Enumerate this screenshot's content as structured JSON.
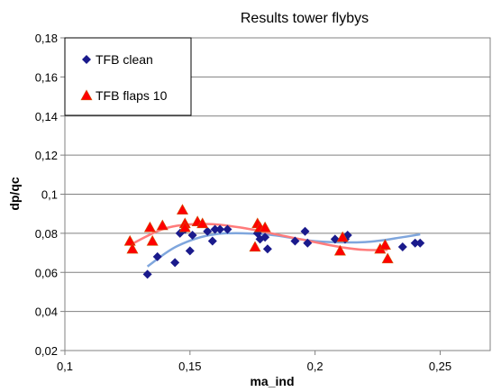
{
  "chart_data": {
    "type": "scatter",
    "title": "Results tower flybys",
    "xlabel": "ma_ind",
    "ylabel": "dp/qc",
    "xlim": [
      0.1,
      0.27
    ],
    "ylim": [
      0.02,
      0.18
    ],
    "x_ticks": [
      0.1,
      0.15,
      0.2,
      0.25
    ],
    "y_ticks": [
      0.02,
      0.04,
      0.06,
      0.08,
      0.1,
      0.12,
      0.14,
      0.16,
      0.18
    ],
    "x_tick_labels": [
      "0,1",
      "0,15",
      "0,2",
      "0,25"
    ],
    "y_tick_labels": [
      "0,02",
      "0,04",
      "0,06",
      "0,08",
      "0,1",
      "0,12",
      "0,14",
      "0,16",
      "0,18"
    ],
    "grid": "horizontal",
    "legend_position": "top-left",
    "series": [
      {
        "name": "TFB clean",
        "marker": "diamond",
        "color": "#1a1a8c",
        "x": [
          0.133,
          0.137,
          0.144,
          0.146,
          0.148,
          0.15,
          0.151,
          0.157,
          0.159,
          0.16,
          0.162,
          0.165,
          0.177,
          0.178,
          0.18,
          0.181,
          0.192,
          0.196,
          0.197,
          0.208,
          0.212,
          0.213,
          0.235,
          0.24,
          0.242
        ],
        "y": [
          0.059,
          0.068,
          0.065,
          0.08,
          0.082,
          0.071,
          0.079,
          0.081,
          0.076,
          0.082,
          0.082,
          0.082,
          0.08,
          0.077,
          0.078,
          0.072,
          0.076,
          0.081,
          0.075,
          0.077,
          0.077,
          0.079,
          0.073,
          0.075,
          0.075
        ]
      },
      {
        "name": "TFB flaps 10",
        "marker": "triangle",
        "color": "#ff0000",
        "x": [
          0.126,
          0.127,
          0.134,
          0.135,
          0.139,
          0.147,
          0.148,
          0.148,
          0.153,
          0.155,
          0.176,
          0.177,
          0.178,
          0.18,
          0.21,
          0.211,
          0.226,
          0.228,
          0.229
        ],
        "y": [
          0.076,
          0.072,
          0.083,
          0.076,
          0.084,
          0.092,
          0.085,
          0.083,
          0.086,
          0.085,
          0.073,
          0.085,
          0.083,
          0.083,
          0.071,
          0.078,
          0.072,
          0.074,
          0.067
        ]
      }
    ],
    "trendlines": [
      {
        "series": "TFB clean",
        "color": "#7fa6dd",
        "x": [
          0.133,
          0.145,
          0.16,
          0.18,
          0.2,
          0.22,
          0.235,
          0.242
        ],
        "y": [
          0.063,
          0.0735,
          0.0795,
          0.0795,
          0.076,
          0.0755,
          0.078,
          0.0795
        ]
      },
      {
        "series": "TFB flaps 10",
        "color": "#ff7b7b",
        "x": [
          0.126,
          0.14,
          0.155,
          0.17,
          0.19,
          0.21,
          0.22,
          0.229
        ],
        "y": [
          0.074,
          0.0825,
          0.0848,
          0.083,
          0.078,
          0.073,
          0.0715,
          0.0715
        ]
      }
    ]
  }
}
